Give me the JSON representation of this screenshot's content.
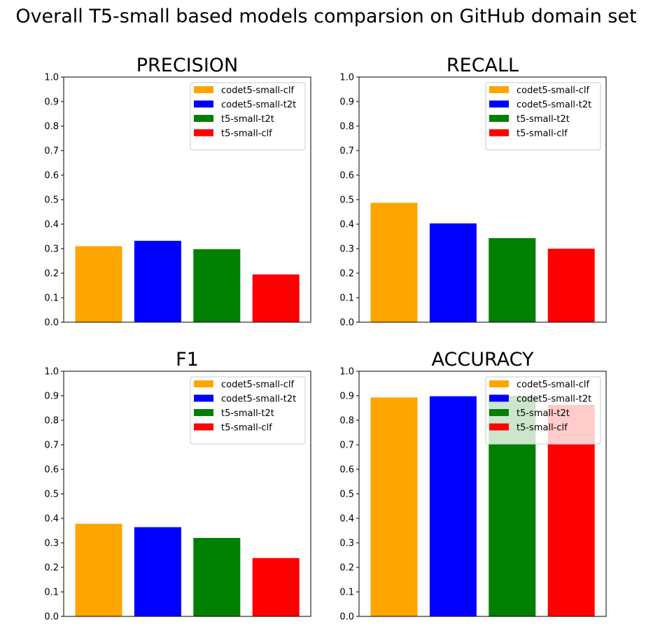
{
  "figure_title": "Overall T5-small based models comparsion on GitHub domain set",
  "chart_data": [
    {
      "type": "bar",
      "title": "PRECISION",
      "categories": [
        "codet5-small-clf",
        "codet5-small-t2t",
        "t5-small-t2t",
        "t5-small-clf"
      ],
      "values": [
        0.31,
        0.332,
        0.298,
        0.195
      ],
      "colors": [
        "#ffa500",
        "#0000ff",
        "#008000",
        "#ff0000"
      ],
      "ylim": [
        0,
        1.0
      ],
      "yticks": [
        "0.0",
        "0.1",
        "0.2",
        "0.3",
        "0.4",
        "0.5",
        "0.6",
        "0.7",
        "0.8",
        "0.9",
        "1.0"
      ],
      "xticks_shown": false,
      "legend": {
        "placement": "top-right",
        "entries": [
          "codet5-small-clf",
          "codet5-small-t2t",
          "t5-small-t2t",
          "t5-small-clf"
        ]
      },
      "grid": false
    },
    {
      "type": "bar",
      "title": "RECALL",
      "categories": [
        "codet5-small-clf",
        "codet5-small-t2t",
        "t5-small-t2t",
        "t5-small-clf"
      ],
      "values": [
        0.487,
        0.403,
        0.343,
        0.3
      ],
      "colors": [
        "#ffa500",
        "#0000ff",
        "#008000",
        "#ff0000"
      ],
      "ylim": [
        0,
        1.0
      ],
      "yticks": [
        "0.0",
        "0.1",
        "0.2",
        "0.3",
        "0.4",
        "0.5",
        "0.6",
        "0.7",
        "0.8",
        "0.9",
        "1.0"
      ],
      "xticks_shown": false,
      "legend": {
        "placement": "top-right",
        "entries": [
          "codet5-small-clf",
          "codet5-small-t2t",
          "t5-small-t2t",
          "t5-small-clf"
        ]
      },
      "grid": false
    },
    {
      "type": "bar",
      "title": "F1",
      "categories": [
        "codet5-small-clf",
        "codet5-small-t2t",
        "t5-small-t2t",
        "t5-small-clf"
      ],
      "values": [
        0.378,
        0.364,
        0.32,
        0.238
      ],
      "colors": [
        "#ffa500",
        "#0000ff",
        "#008000",
        "#ff0000"
      ],
      "ylim": [
        0,
        1.0
      ],
      "yticks": [
        "0.0",
        "0.1",
        "0.2",
        "0.3",
        "0.4",
        "0.5",
        "0.6",
        "0.7",
        "0.8",
        "0.9",
        "1.0"
      ],
      "xticks_shown": false,
      "legend": {
        "placement": "top-right",
        "entries": [
          "codet5-small-clf",
          "codet5-small-t2t",
          "t5-small-t2t",
          "t5-small-clf"
        ]
      },
      "grid": false
    },
    {
      "type": "bar",
      "title": "ACCURACY",
      "categories": [
        "codet5-small-clf",
        "codet5-small-t2t",
        "t5-small-t2t",
        "t5-small-clf"
      ],
      "values": [
        0.893,
        0.898,
        0.9,
        0.863
      ],
      "colors": [
        "#ffa500",
        "#0000ff",
        "#008000",
        "#ff0000"
      ],
      "ylim": [
        0,
        1.0
      ],
      "yticks": [
        "0.0",
        "0.1",
        "0.2",
        "0.3",
        "0.4",
        "0.5",
        "0.6",
        "0.7",
        "0.8",
        "0.9",
        "1.0"
      ],
      "xticks_shown": false,
      "legend": {
        "placement": "top-right",
        "entries": [
          "codet5-small-clf",
          "codet5-small-t2t",
          "t5-small-t2t",
          "t5-small-clf"
        ]
      },
      "grid": false
    }
  ]
}
